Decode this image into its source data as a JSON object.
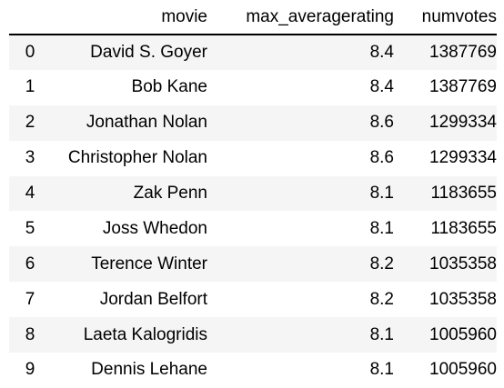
{
  "table": {
    "index_header": "",
    "columns": [
      "movie",
      "max_averagerating",
      "numvotes"
    ],
    "rows": [
      {
        "index": "0",
        "movie": "David S. Goyer",
        "max_averagerating": "8.4",
        "numvotes": "1387769"
      },
      {
        "index": "1",
        "movie": "Bob Kane",
        "max_averagerating": "8.4",
        "numvotes": "1387769"
      },
      {
        "index": "2",
        "movie": "Jonathan Nolan",
        "max_averagerating": "8.6",
        "numvotes": "1299334"
      },
      {
        "index": "3",
        "movie": "Christopher Nolan",
        "max_averagerating": "8.6",
        "numvotes": "1299334"
      },
      {
        "index": "4",
        "movie": "Zak Penn",
        "max_averagerating": "8.1",
        "numvotes": "1183655"
      },
      {
        "index": "5",
        "movie": "Joss Whedon",
        "max_averagerating": "8.1",
        "numvotes": "1183655"
      },
      {
        "index": "6",
        "movie": "Terence Winter",
        "max_averagerating": "8.2",
        "numvotes": "1035358"
      },
      {
        "index": "7",
        "movie": "Jordan Belfort",
        "max_averagerating": "8.2",
        "numvotes": "1035358"
      },
      {
        "index": "8",
        "movie": "Laeta Kalogridis",
        "max_averagerating": "8.1",
        "numvotes": "1005960"
      },
      {
        "index": "9",
        "movie": "Dennis Lehane",
        "max_averagerating": "8.1",
        "numvotes": "1005960"
      }
    ]
  },
  "colors": {
    "striped_row": "#f5f5f5",
    "header_rule": "#000000"
  }
}
